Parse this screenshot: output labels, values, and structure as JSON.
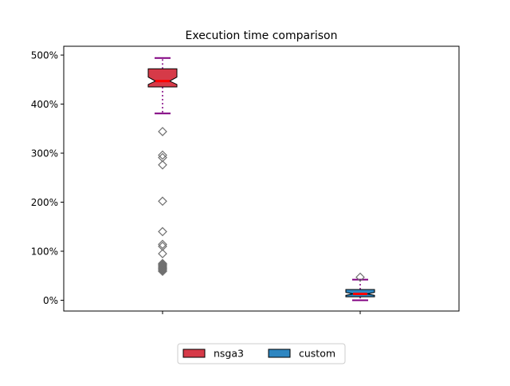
{
  "chart_data": {
    "type": "box",
    "title": "Execution time comparison",
    "xlabel": "",
    "ylabel": "",
    "ylim": [
      -22,
      518
    ],
    "yticks": [
      0,
      100,
      200,
      300,
      400,
      500
    ],
    "ytick_labels": [
      "0%",
      "100%",
      "200%",
      "300%",
      "400%",
      "500%"
    ],
    "grid": false,
    "legend": "bottom-center",
    "colors": {
      "median": "#ff0000",
      "whisker": "#800080",
      "cap": "#800080",
      "outlier": "#707070"
    },
    "series": [
      {
        "name": "nsga3",
        "color": "#d63a48",
        "q1": 435,
        "median": 447,
        "q3": 472,
        "notch_low": 440,
        "notch_high": 455,
        "whisker_low": 381,
        "whisker_high": 494,
        "outliers": [
          344,
          296,
          291,
          276,
          202,
          140,
          114,
          110,
          95,
          75,
          73,
          71,
          69,
          67,
          65,
          63,
          61,
          59
        ]
      },
      {
        "name": "custom",
        "color": "#2e86c1",
        "q1": 7,
        "median": 13,
        "q3": 22,
        "notch_low": 10,
        "notch_high": 16,
        "whisker_low": 0,
        "whisker_high": 42,
        "outliers": [
          47
        ]
      }
    ]
  }
}
